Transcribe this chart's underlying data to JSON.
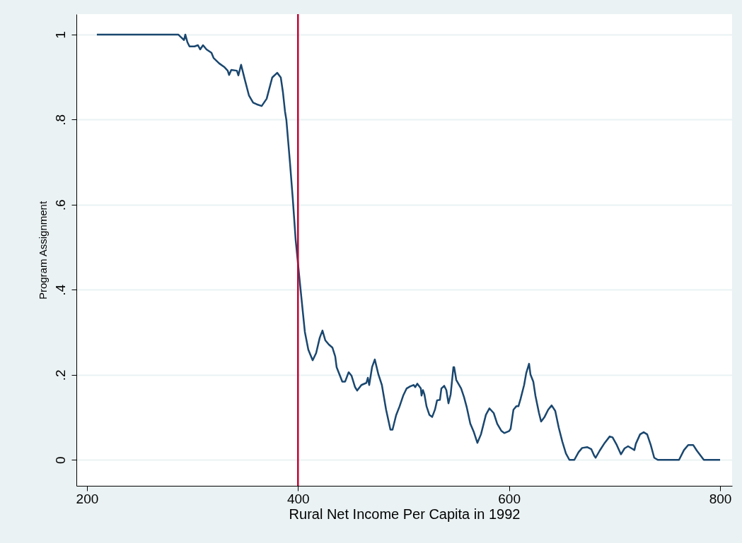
{
  "chart_data": {
    "type": "line",
    "xlabel": "Rural Net Income Per Capita  in 1992",
    "ylabel": "Program Assignment",
    "xlim": [
      190,
      811.4
    ],
    "ylim": [
      -0.061,
      1.048
    ],
    "xticks": [
      200,
      400,
      600,
      800
    ],
    "yticks": [
      {
        "value": 0,
        "label": "0"
      },
      {
        "value": 0.2,
        "label": ".2"
      },
      {
        "value": 0.4,
        "label": ".4"
      },
      {
        "value": 0.6,
        "label": ".6"
      },
      {
        "value": 0.8,
        "label": ".8"
      },
      {
        "value": 1,
        "label": "1"
      }
    ],
    "grid": "y",
    "ref_lines": [
      {
        "axis": "x",
        "value": 400,
        "color": "#c10534"
      }
    ],
    "series": [
      {
        "color": "#1a476f",
        "x": [
          209.4,
          286.5,
          292,
          293.2,
          295.2,
          297.2,
          301.9,
          305.2,
          307.3,
          310,
          313.3,
          318,
          320,
          325.4,
          330,
          333.4,
          334.7,
          336.8,
          342.1,
          343.5,
          346.1,
          349.5,
          353.5,
          357.5,
          360.9,
          365.6,
          370.3,
          375.6,
          380.3,
          383.7,
          385.7,
          387.7,
          389,
          392.4,
          395,
          397.8,
          401.1,
          404.5,
          406.5,
          409.8,
          413.9,
          417.2,
          420.6,
          423.2,
          425.9,
          429.3,
          432.6,
          435.3,
          436.6,
          439.3,
          442,
          444.7,
          448,
          450.7,
          454.1,
          456.1,
          460.1,
          464.8,
          466.2,
          467.5,
          470.2,
          472.8,
          476.2,
          479.5,
          483.5,
          487.6,
          489.6,
          493,
          496.3,
          499.7,
          503,
          506.4,
          509.7,
          511.1,
          513.1,
          516.4,
          517.1,
          518.4,
          519.8,
          521.8,
          524.5,
          527.2,
          529.8,
          531.8,
          534.5,
          535.9,
          538.6,
          540.6,
          542.6,
          544.7,
          547.3,
          548,
          550,
          554.6,
          557.3,
          560,
          563.3,
          566.7,
          570,
          573.4,
          578.1,
          581.4,
          585.5,
          588.8,
          592.8,
          595.5,
          600.2,
          601.5,
          604.2,
          606.9,
          608.9,
          610.9,
          614.3,
          616.3,
          619,
          620.3,
          623,
          625,
          628.4,
          630.4,
          633.7,
          637.1,
          640.4,
          643.8,
          647.1,
          650.5,
          653.9,
          657.2,
          661.9,
          665.9,
          669.3,
          674,
          678,
          680.7,
          682.1,
          686,
          690.7,
          695.4,
          698.1,
          702.1,
          706.1,
          709.5,
          712.8,
          716.2,
          718.8,
          720.2,
          724.2,
          727.6,
          730.9,
          734.3,
          737.6,
          741,
          761.1,
          765.8,
          769.8,
          774.5,
          777.9,
          784.6,
          800
        ],
        "values": [
          1,
          1,
          0.987,
          1,
          0.982,
          0.972,
          0.972,
          0.975,
          0.965,
          0.975,
          0.965,
          0.957,
          0.945,
          0.932,
          0.924,
          0.915,
          0.905,
          0.917,
          0.915,
          0.904,
          0.929,
          0.895,
          0.857,
          0.84,
          0.836,
          0.832,
          0.849,
          0.899,
          0.91,
          0.899,
          0.865,
          0.819,
          0.799,
          0.699,
          0.616,
          0.517,
          0.434,
          0.35,
          0.301,
          0.259,
          0.234,
          0.251,
          0.287,
          0.304,
          0.281,
          0.271,
          0.264,
          0.243,
          0.218,
          0.201,
          0.184,
          0.184,
          0.206,
          0.198,
          0.171,
          0.163,
          0.176,
          0.181,
          0.193,
          0.176,
          0.218,
          0.236,
          0.201,
          0.176,
          0.118,
          0.071,
          0.071,
          0.105,
          0.126,
          0.151,
          0.168,
          0.173,
          0.176,
          0.171,
          0.179,
          0.168,
          0.151,
          0.164,
          0.154,
          0.126,
          0.106,
          0.101,
          0.118,
          0.14,
          0.141,
          0.168,
          0.174,
          0.164,
          0.133,
          0.154,
          0.218,
          0.218,
          0.188,
          0.168,
          0.148,
          0.123,
          0.085,
          0.065,
          0.04,
          0.06,
          0.106,
          0.121,
          0.11,
          0.085,
          0.068,
          0.063,
          0.068,
          0.073,
          0.118,
          0.126,
          0.126,
          0.143,
          0.176,
          0.204,
          0.226,
          0.201,
          0.184,
          0.151,
          0.11,
          0.09,
          0.101,
          0.118,
          0.128,
          0.115,
          0.076,
          0.043,
          0.015,
          0,
          0,
          0.018,
          0.028,
          0.03,
          0.025,
          0.01,
          0.005,
          0.022,
          0.04,
          0.055,
          0.053,
          0.035,
          0.013,
          0.027,
          0.032,
          0.027,
          0.023,
          0.038,
          0.06,
          0.065,
          0.06,
          0.035,
          0.005,
          0,
          0,
          0.023,
          0.035,
          0.035,
          0.022,
          0,
          0
        ]
      }
    ]
  }
}
